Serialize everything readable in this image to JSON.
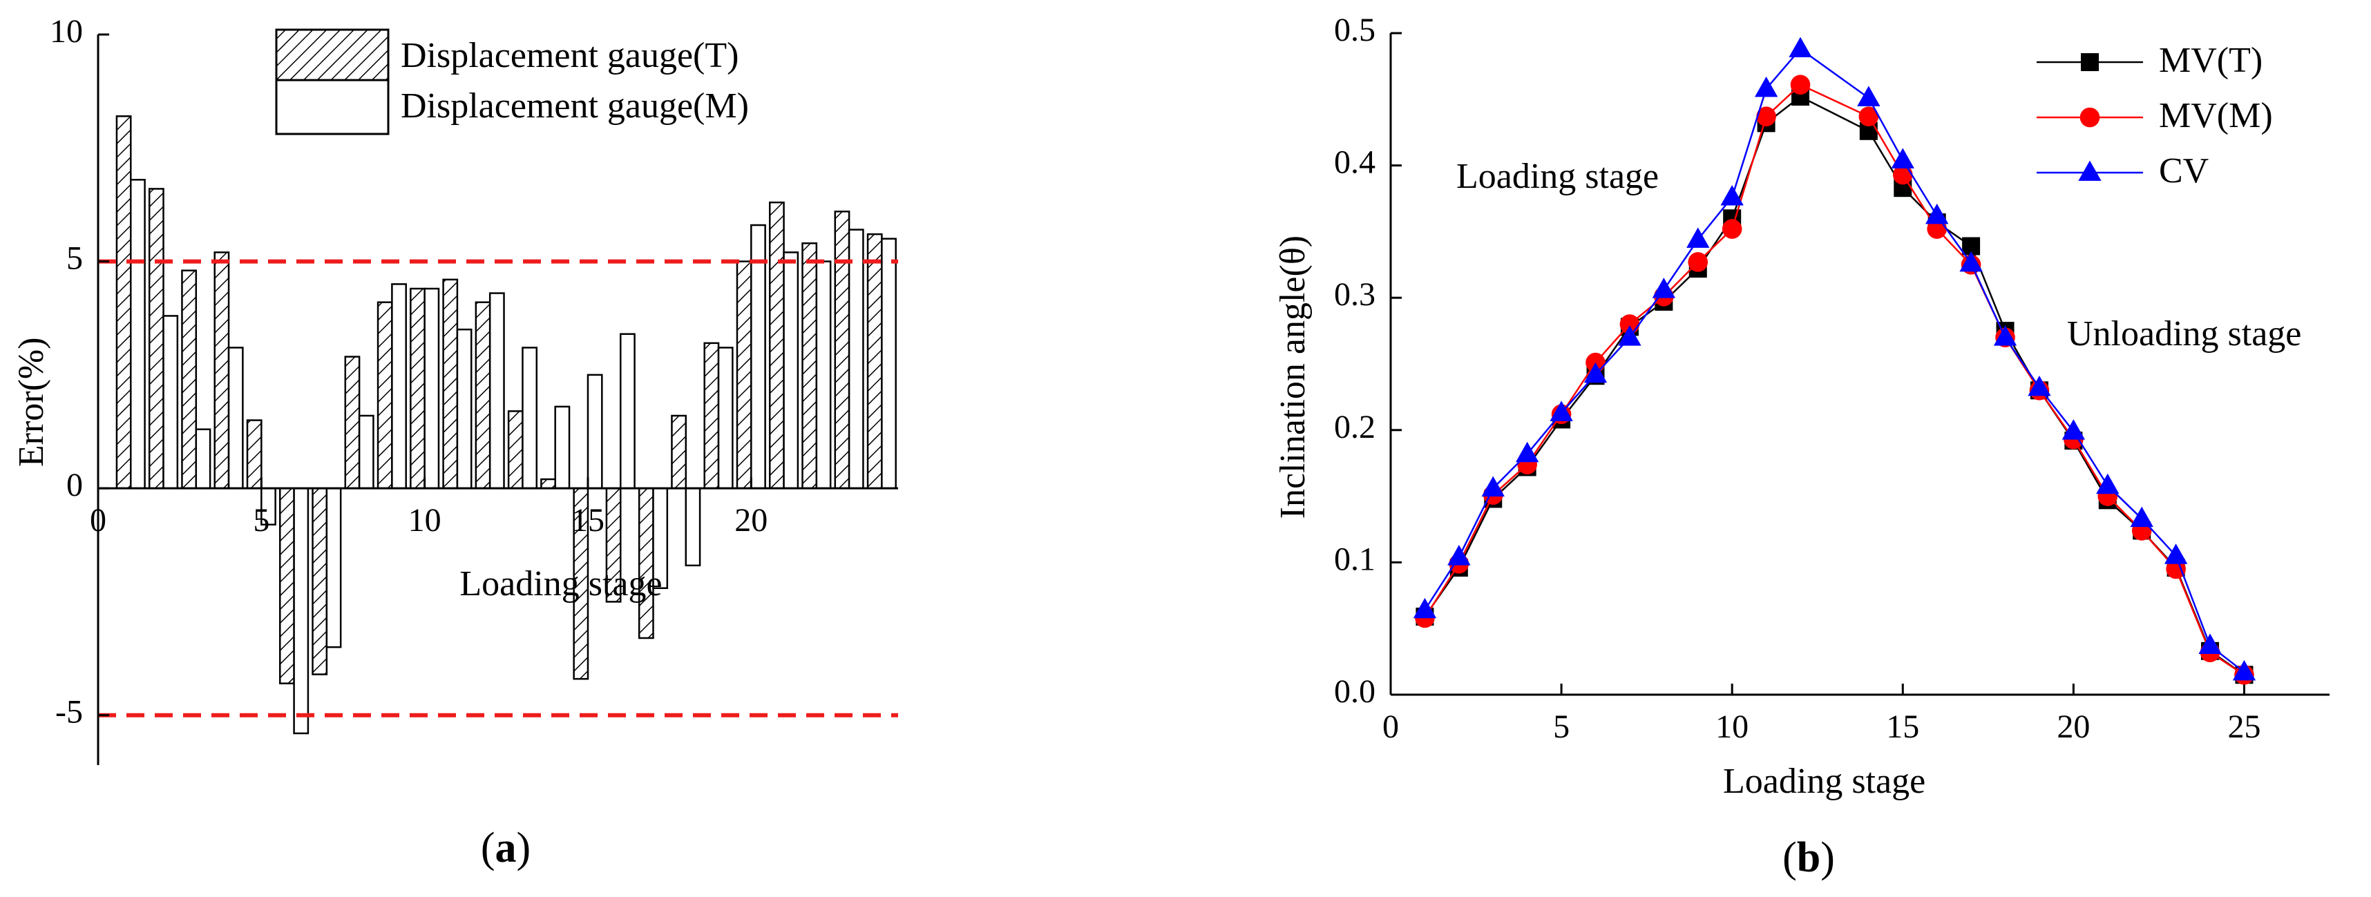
{
  "chart_data": [
    {
      "type": "bar",
      "panel_label": "a",
      "xlabel": "Loading stage",
      "ylabel": "Error(%)",
      "xlim": [
        0,
        24.5
      ],
      "ylim": [
        -6.1,
        10
      ],
      "x_ticks": [
        0,
        5,
        10,
        15,
        20
      ],
      "x_tick_labels": [
        "0",
        "5",
        "10",
        "15",
        "20"
      ],
      "y_ticks": [
        -5,
        0,
        5,
        10
      ],
      "y_tick_labels": [
        "-5",
        "0",
        "5",
        "10"
      ],
      "reference_lines": [
        5,
        -5
      ],
      "reference_line_color": "#ee1c1c",
      "legend_position": "top-center",
      "categories": [
        1,
        2,
        3,
        4,
        5,
        6,
        7,
        8,
        9,
        10,
        11,
        12,
        13,
        14,
        15,
        16,
        17,
        18,
        19,
        20,
        21,
        22,
        23,
        24
      ],
      "series": [
        {
          "name": "Displacement gauge(T)",
          "style": "hatched",
          "values": [
            8.2,
            6.6,
            4.8,
            5.2,
            1.5,
            -4.3,
            -4.1,
            2.9,
            4.1,
            4.4,
            4.6,
            4.1,
            1.7,
            0.2,
            -4.2,
            -2.5,
            -3.3,
            1.6,
            3.2,
            5.0,
            6.3,
            5.4,
            6.1,
            5.6
          ]
        },
        {
          "name": "Displacement gauge(M)",
          "style": "open",
          "values": [
            6.8,
            3.8,
            1.3,
            3.1,
            -0.8,
            -5.4,
            -3.5,
            1.6,
            4.5,
            4.4,
            3.5,
            4.3,
            3.1,
            1.8,
            2.5,
            3.4,
            -2.2,
            -1.7,
            3.1,
            5.8,
            5.2,
            5.0,
            5.7,
            5.5
          ]
        }
      ]
    },
    {
      "type": "line",
      "panel_label": "b",
      "xlabel": "Loading stage",
      "ylabel": "Inclination angle(θ)",
      "xlim": [
        0,
        27.5
      ],
      "ylim": [
        0,
        0.5
      ],
      "x_ticks": [
        0,
        5,
        10,
        15,
        20,
        25
      ],
      "x_tick_labels": [
        "0",
        "5",
        "10",
        "15",
        "20",
        "25"
      ],
      "y_ticks": [
        0.0,
        0.1,
        0.2,
        0.3,
        0.4,
        0.5
      ],
      "y_tick_labels": [
        "0.0",
        "0.1",
        "0.2",
        "0.3",
        "0.4",
        "0.5"
      ],
      "legend_position": "top-right",
      "annotations": [
        "Loading stage",
        "Unloading stage"
      ],
      "x": [
        1,
        2,
        3,
        4,
        5,
        6,
        7,
        8,
        9,
        10,
        11,
        12,
        14,
        15,
        16,
        17,
        18,
        19,
        20,
        21,
        22,
        23,
        24,
        25
      ],
      "series": [
        {
          "name": "MV(T)",
          "color": "#000000",
          "marker": "square",
          "values": [
            0.059,
            0.096,
            0.148,
            0.172,
            0.208,
            0.241,
            0.278,
            0.297,
            0.322,
            0.36,
            0.432,
            0.452,
            0.426,
            0.383,
            0.357,
            0.339,
            0.275,
            0.23,
            0.192,
            0.147,
            0.124,
            0.096,
            0.033,
            0.015
          ]
        },
        {
          "name": "MV(M)",
          "color": "#ff0000",
          "marker": "circle",
          "values": [
            0.058,
            0.099,
            0.151,
            0.174,
            0.212,
            0.251,
            0.28,
            0.301,
            0.327,
            0.352,
            0.437,
            0.461,
            0.437,
            0.393,
            0.352,
            0.325,
            0.27,
            0.23,
            0.193,
            0.15,
            0.124,
            0.095,
            0.032,
            0.015
          ]
        },
        {
          "name": "CV",
          "color": "#0000ff",
          "marker": "triangle",
          "values": [
            0.064,
            0.104,
            0.156,
            0.182,
            0.213,
            0.242,
            0.27,
            0.306,
            0.344,
            0.376,
            0.458,
            0.488,
            0.451,
            0.404,
            0.362,
            0.326,
            0.27,
            0.232,
            0.199,
            0.158,
            0.133,
            0.105,
            0.037,
            0.017
          ]
        }
      ]
    }
  ]
}
